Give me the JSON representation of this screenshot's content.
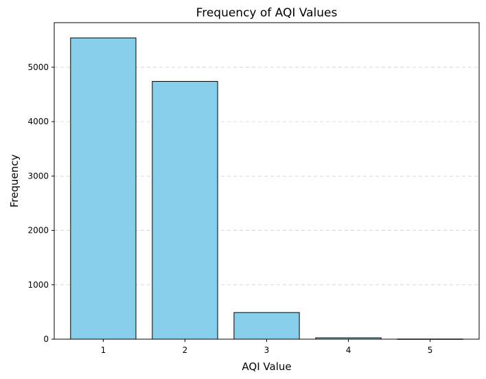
{
  "chart_data": {
    "type": "bar",
    "title": "Frequency of AQI Values",
    "xlabel": "AQI Value",
    "ylabel": "Frequency",
    "categories": [
      "1",
      "2",
      "3",
      "4",
      "5"
    ],
    "values": [
      5540,
      4740,
      490,
      25,
      3
    ],
    "ylim": [
      0,
      5820
    ],
    "yticks": [
      0,
      1000,
      2000,
      3000,
      4000,
      5000
    ],
    "grid": "y-dashed",
    "bar_color": "#87CEEB",
    "edge_color": "#000000",
    "grid_color": "#d0d0d0"
  }
}
